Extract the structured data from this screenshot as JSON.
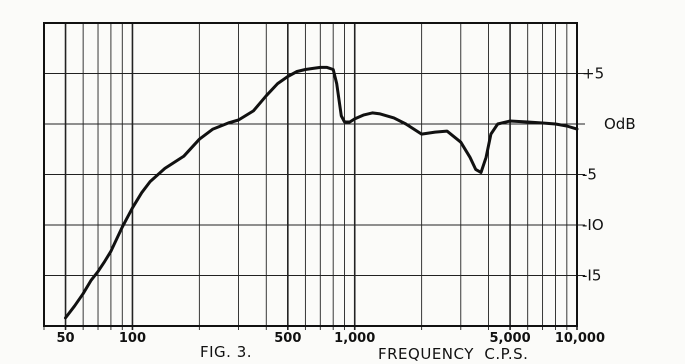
{
  "chart_data": {
    "type": "line",
    "figure_label": "FIG. 3.",
    "xlabel": "FREQUENCY  C.P.S.",
    "x_scale": "log",
    "xlim": [
      40,
      10000
    ],
    "ylim": [
      -20,
      10
    ],
    "grid": true,
    "x_tick_labels": [
      {
        "value": 50,
        "label": "50"
      },
      {
        "value": 100,
        "label": "100"
      },
      {
        "value": 500,
        "label": "500"
      },
      {
        "value": 1000,
        "label": "1,000"
      },
      {
        "value": 5000,
        "label": "5,000"
      },
      {
        "value": 10000,
        "label": "10,000"
      }
    ],
    "y_tick_labels": [
      {
        "value": 5,
        "label": "+5"
      },
      {
        "value": 0,
        "label": "OdB"
      },
      {
        "value": -5,
        "label": "-5"
      },
      {
        "value": -10,
        "label": "-IO"
      },
      {
        "value": -15,
        "label": "-I5"
      }
    ],
    "series": [
      {
        "x": [
          50,
          55,
          60,
          65,
          70,
          75,
          80,
          90,
          100,
          110,
          120,
          140,
          170,
          200,
          230,
          270,
          300,
          350,
          400,
          450,
          500,
          550,
          600,
          650,
          700,
          750,
          800,
          830,
          870,
          900,
          950,
          1000,
          1100,
          1200,
          1300,
          1500,
          1700,
          2000,
          2300,
          2600,
          3000,
          3300,
          3500,
          3700,
          3900,
          4100,
          4400,
          5000,
          6000,
          7000,
          8000,
          9000,
          10000
        ],
        "y": [
          -19.2,
          -18.0,
          -16.8,
          -15.5,
          -14.6,
          -13.6,
          -12.6,
          -10.2,
          -8.3,
          -6.8,
          -5.7,
          -4.4,
          -3.2,
          -1.5,
          -0.5,
          0.1,
          0.4,
          1.3,
          2.8,
          4.0,
          4.7,
          5.2,
          5.4,
          5.5,
          5.6,
          5.6,
          5.4,
          4.0,
          0.8,
          0.2,
          0.2,
          0.5,
          0.9,
          1.1,
          1.0,
          0.6,
          0.0,
          -1.0,
          -0.8,
          -0.7,
          -1.8,
          -3.3,
          -4.5,
          -4.8,
          -3.3,
          -1.0,
          0.0,
          0.3,
          0.2,
          0.1,
          0.0,
          -0.2,
          -0.5
        ]
      }
    ]
  }
}
